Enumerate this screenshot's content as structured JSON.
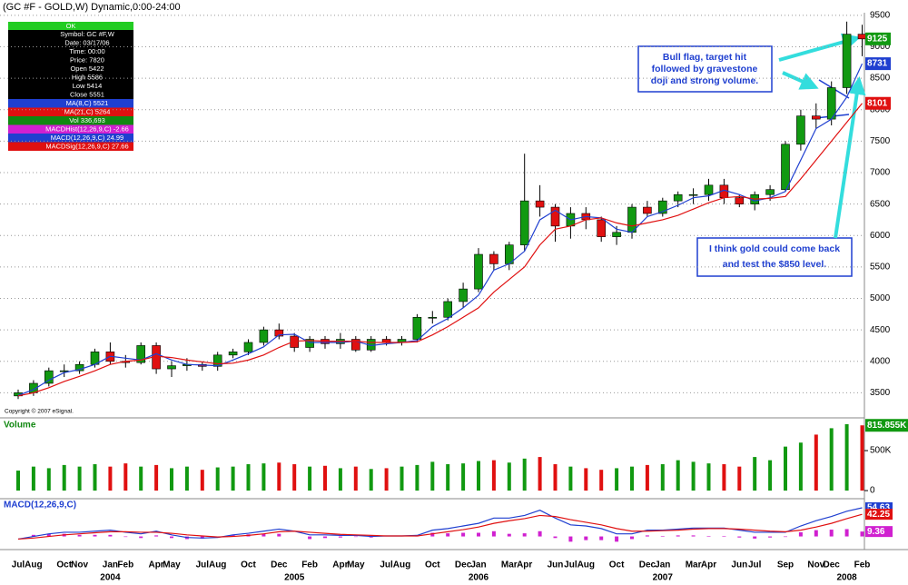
{
  "header": {
    "title": "(GC #F - GOLD,W) Dynamic,0:00-24:00"
  },
  "info_panel": {
    "status": "OK",
    "rows": [
      "Symbol: GC #F,W",
      "Date: 03/17/06",
      "Time: 00:00",
      "Price: 7820",
      "Open 5422",
      "High 5586",
      "Low 5414",
      "Close 5551",
      "MA(8,C) 5521",
      "MA(21,C) 5264",
      "Vol 336,693",
      "MACDHist(12,26,9,C) -2.66",
      "MACD(12,26,9,C) 24.99",
      "MACDSig(12,26,9,C) 27.66"
    ],
    "colors": [
      "#000000",
      "#000000",
      "#000000",
      "#000000",
      "#000000",
      "#000000",
      "#000000",
      "#000000",
      "#1f3fd0",
      "#e01010",
      "#118811",
      "#d020d0",
      "#1f3fd0",
      "#e01010"
    ]
  },
  "chart_data": [
    {
      "type": "candlestick",
      "copyright": "Copyright © 2007 eSignal.",
      "categories": [
        "Jul",
        "Aug",
        null,
        "Oct",
        "Nov",
        null,
        "Jan",
        "Feb",
        null,
        "Apr",
        "May",
        null,
        "Jul",
        "Aug",
        null,
        "Oct",
        null,
        "Dec",
        null,
        "Feb",
        null,
        "Apr",
        "May",
        null,
        "Jul",
        "Aug",
        null,
        "Oct",
        null,
        "Dec",
        "Jan",
        null,
        "Mar",
        "Apr",
        null,
        "Jun",
        "Jul",
        "Aug",
        null,
        "Oct",
        null,
        "Dec",
        "Jan",
        null,
        "Mar",
        "Apr",
        null,
        "Jun",
        "Jul",
        null,
        "Sep",
        null,
        "Nov",
        "Dec",
        null,
        "Feb"
      ],
      "year_labels": [
        null,
        null,
        null,
        null,
        null,
        null,
        "2004",
        null,
        null,
        null,
        null,
        null,
        null,
        null,
        null,
        null,
        null,
        null,
        "2005",
        null,
        null,
        null,
        null,
        null,
        null,
        null,
        null,
        null,
        null,
        null,
        "2006",
        null,
        null,
        null,
        null,
        null,
        null,
        null,
        null,
        null,
        null,
        null,
        "2007",
        null,
        null,
        null,
        null,
        null,
        null,
        null,
        null,
        null,
        null,
        null,
        "2008",
        null
      ],
      "open": [
        3450,
        3500,
        3650,
        3850,
        3850,
        3950,
        4150,
        4000,
        3980,
        4250,
        3880,
        3930,
        3950,
        3920,
        4100,
        4150,
        4300,
        4500,
        4400,
        4220,
        4350,
        4280,
        4350,
        4180,
        4350,
        4300,
        4350,
        4700,
        4700,
        4950,
        5150,
        5700,
        5550,
        5850,
        6550,
        6450,
        6150,
        6350,
        6250,
        5980,
        6050,
        6450,
        6350,
        6550,
        6650,
        6650,
        6800,
        6600,
        6500,
        6650,
        6730,
        7450,
        7900,
        7850,
        8350,
        9200
      ],
      "high": [
        3550,
        3700,
        3900,
        3950,
        4000,
        4200,
        4300,
        4100,
        4300,
        4300,
        4000,
        4050,
        4000,
        4150,
        4200,
        4350,
        4550,
        4600,
        4450,
        4400,
        4400,
        4450,
        4400,
        4400,
        4400,
        4400,
        4750,
        4800,
        5000,
        5250,
        5800,
        5750,
        5900,
        7300,
        6800,
        6500,
        6450,
        6450,
        6300,
        6150,
        6500,
        6550,
        6600,
        6700,
        6750,
        6900,
        6900,
        6650,
        6700,
        6800,
        7500,
        8000,
        8100,
        8450,
        9400,
        9350
      ],
      "low": [
        3400,
        3450,
        3600,
        3750,
        3800,
        3900,
        3950,
        3900,
        3950,
        3800,
        3750,
        3850,
        3850,
        3850,
        4050,
        4100,
        4250,
        4350,
        4150,
        4150,
        4200,
        4200,
        4150,
        4150,
        4250,
        4250,
        4300,
        4600,
        4650,
        4850,
        5100,
        5450,
        5450,
        5750,
        6300,
        5900,
        5950,
        6100,
        5900,
        5850,
        5950,
        6300,
        6300,
        6450,
        6500,
        6550,
        6500,
        6450,
        6400,
        6550,
        6700,
        7350,
        7700,
        7750,
        8250,
        8850
      ],
      "close": [
        3500,
        3650,
        3850,
        3850,
        3950,
        4150,
        4000,
        3980,
        4250,
        3880,
        3930,
        3950,
        3920,
        4100,
        4150,
        4300,
        4500,
        4400,
        4220,
        4350,
        4280,
        4350,
        4180,
        4350,
        4300,
        4350,
        4700,
        4700,
        4950,
        5150,
        5700,
        5550,
        5850,
        6550,
        6450,
        6150,
        6350,
        6250,
        5980,
        6050,
        6450,
        6350,
        6550,
        6650,
        6650,
        6800,
        6600,
        6500,
        6650,
        6730,
        7450,
        7900,
        7850,
        8350,
        9200,
        9125
      ],
      "up_color": "#119911",
      "down_color": "#e01010",
      "series": [
        {
          "name": "MA(8,C)",
          "color": "#1f3fd0",
          "values": [
            3460,
            3550,
            3700,
            3820,
            3870,
            3950,
            4080,
            4050,
            4020,
            4120,
            4020,
            3950,
            3940,
            3930,
            4020,
            4120,
            4230,
            4420,
            4430,
            4300,
            4300,
            4300,
            4320,
            4250,
            4280,
            4300,
            4330,
            4550,
            4680,
            4850,
            5050,
            5450,
            5550,
            5750,
            6250,
            6400,
            6250,
            6300,
            6280,
            6100,
            6050,
            6300,
            6380,
            6480,
            6600,
            6630,
            6720,
            6650,
            6550,
            6600,
            6700,
            7200,
            7700,
            7850,
            8200,
            8731
          ]
        },
        {
          "name": "MA(21,C)",
          "color": "#e01010",
          "values": [
            3450,
            3500,
            3580,
            3680,
            3760,
            3850,
            3950,
            4000,
            4020,
            4080,
            4060,
            4020,
            3990,
            3960,
            3970,
            4020,
            4100,
            4220,
            4320,
            4330,
            4320,
            4320,
            4320,
            4300,
            4300,
            4300,
            4310,
            4420,
            4550,
            4700,
            4850,
            5100,
            5300,
            5500,
            5850,
            6100,
            6150,
            6250,
            6280,
            6200,
            6150,
            6200,
            6250,
            6320,
            6420,
            6520,
            6600,
            6620,
            6580,
            6590,
            6620,
            6900,
            7200,
            7500,
            7800,
            8101
          ]
        }
      ],
      "ylim": [
        3130,
        9700
      ],
      "yticks": [
        3500,
        4000,
        4500,
        5000,
        5500,
        6000,
        6500,
        7000,
        7500,
        8000,
        8500,
        9000,
        9500
      ],
      "grid": true,
      "annotations": [
        "Bull flag, target hit",
        "followed by gravestone",
        "doji and strong volume.",
        "I think gold could come back",
        "and test the $850 level."
      ]
    },
    {
      "type": "bar",
      "title": "Volume",
      "color_up": "#119911",
      "color_down": "#e01010",
      "values": [
        250000,
        300000,
        280000,
        320000,
        300000,
        330000,
        300000,
        340000,
        300000,
        320000,
        280000,
        300000,
        260000,
        290000,
        300000,
        330000,
        340000,
        350000,
        330000,
        300000,
        310000,
        280000,
        300000,
        270000,
        280000,
        300000,
        320000,
        360000,
        330000,
        340000,
        370000,
        380000,
        350000,
        400000,
        420000,
        330000,
        300000,
        280000,
        260000,
        280000,
        300000,
        320000,
        330000,
        380000,
        360000,
        340000,
        330000,
        300000,
        420000,
        380000,
        550000,
        600000,
        700000,
        780000,
        830000,
        815855
      ],
      "value_labels": [
        null,
        null,
        null,
        null,
        null,
        null,
        null,
        null,
        null,
        null,
        null,
        null,
        null,
        null,
        null,
        null,
        null,
        null,
        null,
        null,
        null,
        null,
        null,
        null,
        null,
        null,
        null,
        null,
        null,
        null,
        null,
        null,
        null,
        null,
        null,
        null,
        null,
        null,
        null,
        null,
        null,
        null,
        null,
        null,
        null,
        null,
        null,
        null,
        null,
        null,
        null,
        null,
        null,
        null,
        null,
        "815.855K"
      ],
      "ylim": [
        -90000,
        864000
      ],
      "yticks": [
        0,
        {
          "value": 500000,
          "label": "500K"
        }
      ]
    },
    {
      "type": "macd",
      "title": "MACD(12,26,9,C)",
      "series": [
        {
          "name": "MACD",
          "color": "#1f3fd0",
          "values": [
            -5,
            0,
            5,
            8,
            8,
            10,
            12,
            8,
            5,
            10,
            3,
            -2,
            -3,
            -2,
            3,
            6,
            10,
            14,
            10,
            3,
            3,
            2,
            2,
            0,
            1,
            1,
            2,
            12,
            15,
            20,
            25,
            35,
            35,
            40,
            50,
            35,
            22,
            20,
            15,
            5,
            5,
            12,
            12,
            14,
            16,
            16,
            16,
            12,
            8,
            8,
            8,
            20,
            30,
            38,
            48,
            54.63
          ]
        },
        {
          "name": "Signal",
          "color": "#e01010",
          "values": [
            -5,
            -3,
            0,
            3,
            5,
            7,
            9,
            9,
            8,
            8,
            6,
            3,
            1,
            -1,
            0,
            2,
            5,
            9,
            10,
            8,
            6,
            4,
            3,
            2,
            1,
            1,
            1,
            5,
            9,
            13,
            18,
            25,
            30,
            34,
            40,
            38,
            32,
            27,
            22,
            15,
            10,
            10,
            11,
            12,
            14,
            15,
            15,
            14,
            12,
            10,
            9,
            12,
            18,
            25,
            34,
            42.25
          ]
        },
        {
          "name": "Histogram",
          "color": "#d020d0",
          "values": [
            0,
            3,
            5,
            5,
            3,
            3,
            3,
            -1,
            -3,
            2,
            -3,
            -5,
            -4,
            -1,
            3,
            4,
            5,
            5,
            0,
            -5,
            -3,
            -2,
            -1,
            -2,
            0,
            0,
            1,
            7,
            6,
            7,
            7,
            10,
            5,
            6,
            10,
            -3,
            -10,
            -7,
            -7,
            -10,
            -5,
            2,
            1,
            2,
            2,
            1,
            1,
            -2,
            -4,
            -2,
            -1,
            8,
            12,
            13,
            14,
            9.36
          ]
        }
      ],
      "ylim": [
        -25,
        65
      ]
    }
  ]
}
